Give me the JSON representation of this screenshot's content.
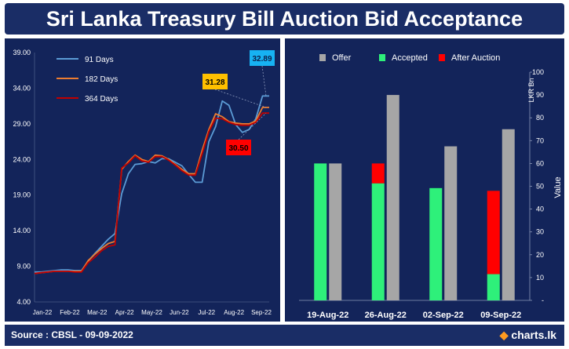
{
  "title": "Sri Lanka Treasury Bill Auction Bid Acceptance",
  "footer": {
    "source": "Source : CBSL - 09-09-2022",
    "brand": "charts.lk"
  },
  "colors": {
    "panel": "#13245a",
    "d91": "#5b9bd5",
    "d182": "#ed7d31",
    "d364": "#c00000",
    "offer": "#a6a6a6",
    "accepted": "#2ef07a",
    "after": "#ff0000",
    "callout91": "#17b2f2",
    "callout182": "#ffc000",
    "callout364": "#ff0000"
  },
  "chart_data": [
    {
      "type": "line",
      "x_tick_labels": [
        "Jan-22",
        "Feb-22",
        "Mar-22",
        "Apr-22",
        "May-22",
        "Jun-22",
        "Jul-22",
        "Aug-22",
        "Sep-22"
      ],
      "y_tick_labels": [
        "4.00",
        "9.00",
        "14.00",
        "19.00",
        "24.00",
        "29.00",
        "34.00",
        "39.00"
      ],
      "ylim": [
        4,
        39
      ],
      "xlim": [
        0,
        35
      ],
      "legend_position": "top-left",
      "series": [
        {
          "name": "91 Days",
          "color_key": "d91",
          "values": [
            8.2,
            8.2,
            8.3,
            8.4,
            8.5,
            8.5,
            8.4,
            8.4,
            9.7,
            10.8,
            11.8,
            12.8,
            13.6,
            19.2,
            22.0,
            23.3,
            23.4,
            23.7,
            23.5,
            24.1,
            24.1,
            23.6,
            23.1,
            21.9,
            20.8,
            20.8,
            26.5,
            28.6,
            32.2,
            31.6,
            28.9,
            27.8,
            28.2,
            29.7,
            32.9,
            32.9
          ]
        },
        {
          "name": "182 Days",
          "color_key": "d182",
          "values": [
            8.0,
            8.1,
            8.2,
            8.3,
            8.3,
            8.3,
            8.3,
            8.3,
            9.8,
            10.7,
            11.5,
            12.2,
            12.5,
            22.6,
            23.7,
            24.6,
            24.0,
            23.7,
            24.6,
            24.5,
            24.0,
            23.3,
            22.6,
            22.0,
            22.0,
            25.3,
            28.2,
            30.4,
            30.0,
            29.3,
            29.1,
            29.0,
            29.0,
            29.4,
            31.3,
            31.3
          ]
        },
        {
          "name": "364 Days",
          "color_key": "d364",
          "values": [
            8.0,
            8.1,
            8.2,
            8.3,
            8.3,
            8.3,
            8.2,
            8.2,
            9.5,
            10.3,
            11.2,
            11.8,
            12.0,
            22.8,
            23.5,
            24.5,
            23.8,
            23.6,
            24.4,
            24.4,
            23.9,
            23.2,
            22.4,
            21.8,
            21.8,
            24.8,
            27.9,
            29.8,
            29.7,
            29.2,
            28.9,
            28.8,
            28.8,
            29.2,
            30.5,
            30.5
          ]
        }
      ],
      "callouts": [
        {
          "series": "91 Days",
          "label": "32.89",
          "color_key": "callout91"
        },
        {
          "series": "182 Days",
          "label": "31.28",
          "color_key": "callout182"
        },
        {
          "series": "364 Days",
          "label": "30.50",
          "color_key": "callout364"
        }
      ]
    },
    {
      "type": "bar",
      "categories": [
        "19-Aug-22",
        "26-Aug-22",
        "02-Sep-22",
        "09-Sep-22"
      ],
      "y_tick_labels": [
        "-",
        "10",
        "20",
        "30",
        "40",
        "50",
        "60",
        "70",
        "80",
        "90",
        "100"
      ],
      "ylim": [
        0,
        100
      ],
      "ylabel": "Value",
      "unit_label": "LKR Bn",
      "legend_position": "top",
      "series": [
        {
          "name": "Accepted",
          "color_key": "accepted",
          "values": [
            60,
            51.3,
            49.2,
            11.5
          ]
        },
        {
          "name": "After Auction",
          "color_key": "after",
          "values": [
            0,
            8.7,
            0,
            36.5
          ]
        },
        {
          "name": "Offer",
          "color_key": "offer",
          "values": [
            60,
            90,
            67.5,
            75
          ]
        }
      ],
      "legend_order": [
        "Offer",
        "Accepted",
        "After Auction"
      ]
    }
  ]
}
